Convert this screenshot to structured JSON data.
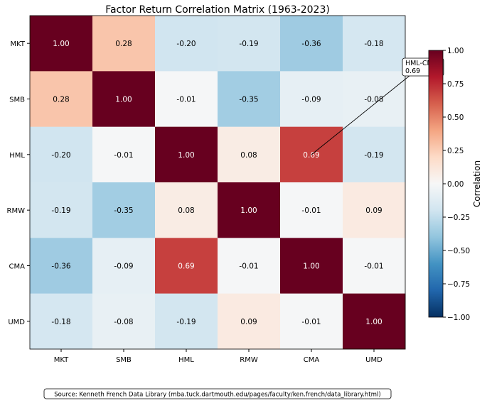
{
  "chart_data": {
    "type": "heatmap",
    "title": "Factor Return Correlation Matrix (1963-2023)",
    "row_labels": [
      "MKT",
      "SMB",
      "HML",
      "RMW",
      "CMA",
      "UMD"
    ],
    "col_labels": [
      "MKT",
      "SMB",
      "HML",
      "RMW",
      "CMA",
      "UMD"
    ],
    "values": [
      [
        1.0,
        0.28,
        -0.2,
        -0.19,
        -0.36,
        -0.18
      ],
      [
        0.28,
        1.0,
        -0.01,
        -0.35,
        -0.09,
        -0.08
      ],
      [
        -0.2,
        -0.01,
        1.0,
        0.08,
        0.69,
        -0.19
      ],
      [
        -0.19,
        -0.35,
        0.08,
        1.0,
        -0.01,
        0.09
      ],
      [
        -0.36,
        -0.09,
        0.69,
        -0.01,
        1.0,
        -0.01
      ],
      [
        -0.18,
        -0.08,
        -0.19,
        0.09,
        -0.01,
        1.0
      ]
    ],
    "colormap": "RdBu_r",
    "colormap_stops": [
      "#053061",
      "#2166ac",
      "#4393c3",
      "#92c5de",
      "#d1e5f0",
      "#f7f7f7",
      "#fddbc7",
      "#f4a582",
      "#d6604d",
      "#b2182b",
      "#67001f"
    ],
    "vmin": -1,
    "vmax": 1,
    "colorbar": {
      "label": "Correlation",
      "ticks": [
        "1.00",
        "0.75",
        "0.50",
        "0.25",
        "0.00",
        "−0.25",
        "−0.50",
        "−0.75",
        "−1.00"
      ],
      "tick_values": [
        1,
        0.75,
        0.5,
        0.25,
        0,
        -0.25,
        -0.5,
        -0.75,
        -1
      ]
    },
    "annotation": {
      "text_line1": "HML-CMA",
      "text_line2": "0.69",
      "row": 2,
      "col": 4
    },
    "source": "Source: Kenneth French Data Library (mba.tuck.dartmouth.edu/pages/faculty/ken.french/data_library.html)"
  }
}
